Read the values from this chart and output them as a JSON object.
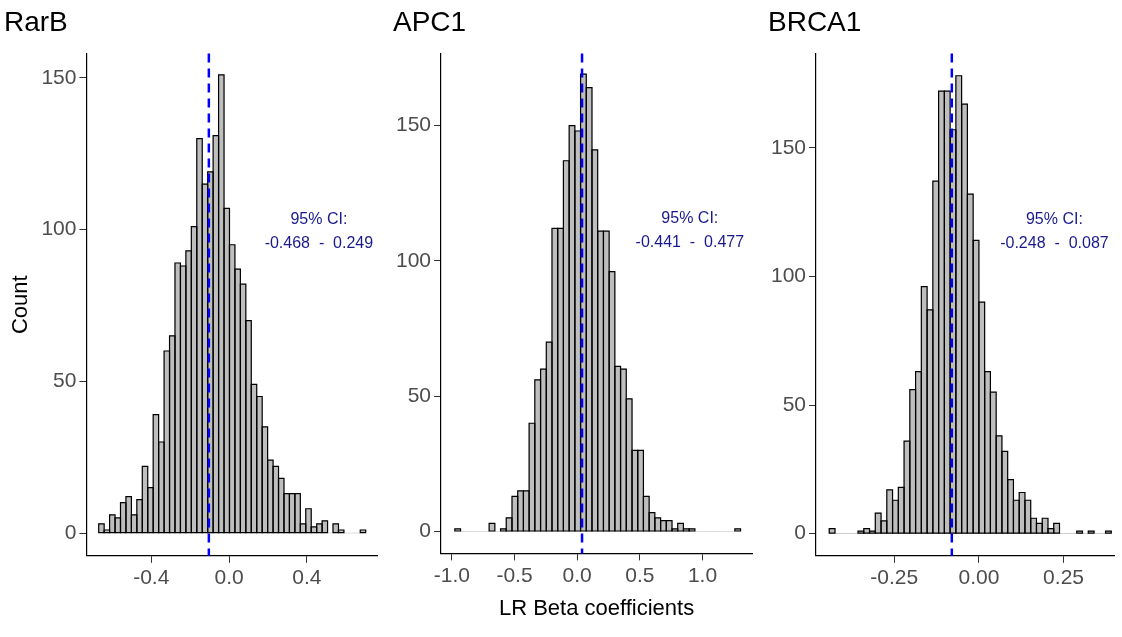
{
  "chart_data": [
    {
      "type": "histogram",
      "title": "RarB",
      "ylabel": "Count",
      "color": "#bebebe",
      "grid": false,
      "bins": [
        -0.67,
        -0.642,
        -0.614,
        -0.586,
        -0.558,
        -0.53,
        -0.502,
        -0.474,
        -0.446,
        -0.418,
        -0.39,
        -0.362,
        -0.334,
        -0.306,
        -0.278,
        -0.25,
        -0.222,
        -0.194,
        -0.166,
        -0.138,
        -0.11,
        -0.082,
        -0.054,
        -0.026,
        0.002,
        0.03,
        0.058,
        0.086,
        0.114,
        0.142,
        0.17,
        0.198,
        0.226,
        0.254,
        0.282,
        0.31,
        0.338,
        0.366,
        0.394,
        0.422,
        0.45,
        0.478,
        0.506,
        0.534,
        0.562,
        0.59,
        0.618,
        0.646,
        0.674,
        0.702
      ],
      "values": [
        3,
        1,
        6,
        5,
        10,
        12,
        6,
        11,
        22,
        15,
        39,
        30,
        60,
        65,
        89,
        88,
        93,
        101,
        130,
        115,
        119,
        131,
        151,
        107,
        95,
        87,
        82,
        70,
        49,
        45,
        35,
        24,
        22,
        18,
        13,
        13,
        13,
        3,
        8,
        2,
        3,
        4,
        0,
        3,
        1,
        0,
        0,
        0,
        1
      ],
      "xlim": [
        -0.733,
        0.76
      ],
      "xticks": [
        {
          "value": -0.4,
          "label": "-0.4"
        },
        {
          "value": 0,
          "label": "0.0"
        },
        {
          "value": 0.4,
          "label": "0.4"
        }
      ],
      "ylim": [
        -7.5,
        158
      ],
      "yticks": [
        0,
        50,
        100,
        150
      ],
      "ref_lines": [
        {
          "axis": "x",
          "value": -0.104,
          "color": "#0000ff",
          "line_style": "dashed"
        }
      ],
      "annotations": [
        "95% CI:",
        "-0.468  -  0.249"
      ]
    },
    {
      "type": "histogram",
      "title": "APC1",
      "xlabel": "LR Beta coefficients",
      "color": "#bebebe",
      "grid": false,
      "bins": [
        -0.976,
        -0.93,
        -0.885,
        -0.839,
        -0.794,
        -0.748,
        -0.702,
        -0.657,
        -0.611,
        -0.566,
        -0.52,
        -0.474,
        -0.429,
        -0.383,
        -0.338,
        -0.292,
        -0.246,
        -0.201,
        -0.155,
        -0.11,
        -0.064,
        -0.018,
        0.027,
        0.073,
        0.118,
        0.164,
        0.21,
        0.255,
        0.301,
        0.346,
        0.392,
        0.438,
        0.483,
        0.529,
        0.574,
        0.62,
        0.666,
        0.711,
        0.757,
        0.802,
        0.848,
        0.894,
        0.939,
        0.985,
        1.03,
        1.076,
        1.122,
        1.167,
        1.213,
        1.258,
        1.304
      ],
      "values": [
        1,
        0,
        0,
        0,
        0,
        0,
        3,
        0,
        1,
        5,
        13,
        15,
        15,
        40,
        56,
        60,
        70,
        112,
        112,
        137,
        150,
        148,
        169,
        164,
        141,
        111,
        111,
        96,
        61,
        60,
        49,
        30,
        30,
        13,
        7,
        5,
        4,
        4,
        1,
        3,
        1,
        1,
        0,
        0,
        0,
        0,
        0,
        0,
        0,
        1
      ],
      "xlim": [
        -1.086,
        1.395
      ],
      "xticks": [
        {
          "value": -1,
          "label": "-1.0"
        },
        {
          "value": -0.5,
          "label": "-0.5"
        },
        {
          "value": 0,
          "label": "0.0"
        },
        {
          "value": 0.5,
          "label": "0.5"
        },
        {
          "value": 1,
          "label": "1.0"
        }
      ],
      "ylim": [
        -8.1,
        176.6
      ],
      "yticks": [
        0,
        50,
        100,
        150
      ],
      "ref_lines": [
        {
          "axis": "x",
          "value": 0.039,
          "color": "#0000ff",
          "line_style": "dashed"
        }
      ],
      "annotations": [
        "95% CI:",
        "-0.441  -  0.477"
      ]
    },
    {
      "type": "histogram",
      "title": "BRCA1",
      "color": "#bebebe",
      "grid": false,
      "bins": [
        -0.442,
        -0.425,
        -0.408,
        -0.391,
        -0.374,
        -0.357,
        -0.34,
        -0.323,
        -0.306,
        -0.289,
        -0.272,
        -0.255,
        -0.238,
        -0.221,
        -0.204,
        -0.187,
        -0.17,
        -0.153,
        -0.136,
        -0.119,
        -0.102,
        -0.085,
        -0.068,
        -0.051,
        -0.034,
        -0.017,
        0,
        0.017,
        0.034,
        0.051,
        0.068,
        0.085,
        0.102,
        0.119,
        0.136,
        0.153,
        0.17,
        0.187,
        0.204,
        0.221,
        0.238,
        0.255,
        0.272,
        0.289,
        0.306,
        0.323,
        0.34,
        0.357,
        0.374,
        0.391
      ],
      "values": [
        2,
        0,
        0,
        0,
        0,
        1,
        2,
        1,
        8,
        5,
        17,
        13,
        18,
        36,
        56,
        63,
        96,
        87,
        137,
        172,
        172,
        157,
        178,
        167,
        132,
        114,
        90,
        63,
        55,
        38,
        32,
        21,
        13,
        16,
        13,
        6,
        4,
        6,
        2,
        4,
        0,
        0,
        0,
        1,
        0,
        1,
        0,
        0,
        1
      ],
      "xlim": [
        -0.481,
        0.399
      ],
      "xticks": [
        {
          "value": -0.25,
          "label": "-0.25"
        },
        {
          "value": 0,
          "label": "0.00"
        },
        {
          "value": 0.25,
          "label": "0.25"
        }
      ],
      "ylim": [
        -8.6,
        186.6
      ],
      "yticks": [
        0,
        50,
        100,
        150
      ],
      "ref_lines": [
        {
          "axis": "x",
          "value": -0.08,
          "color": "#0000ff",
          "line_style": "dashed"
        }
      ],
      "annotations": [
        "95% CI:",
        "-0.248  -  0.087"
      ]
    }
  ]
}
